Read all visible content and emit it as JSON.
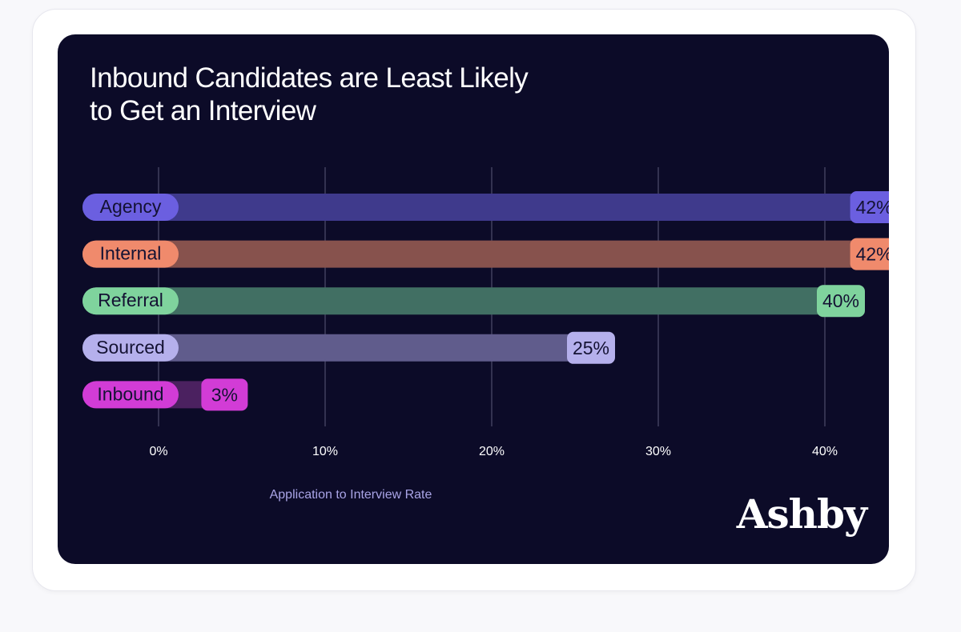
{
  "chart_data": {
    "type": "bar",
    "orientation": "horizontal",
    "title": "Inbound Candidates are Least Likely to Get an Interview",
    "title_lines": [
      "Inbound Candidates are Least Likely",
      "to Get an Interview"
    ],
    "xlabel": "Application to Interview Rate",
    "ylabel": "",
    "xlim": [
      0,
      40
    ],
    "ticks": [
      0,
      10,
      20,
      30,
      40
    ],
    "tick_labels": [
      "0%",
      "10%",
      "20%",
      "30%",
      "40%"
    ],
    "grid": true,
    "legend": "none",
    "categories": [
      "Agency",
      "Internal",
      "Referral",
      "Sourced",
      "Inbound"
    ],
    "values": [
      42,
      42,
      40,
      25,
      3
    ],
    "value_labels": [
      "42%",
      "42%",
      "40%",
      "25%",
      "3%"
    ],
    "colors": {
      "Agency": {
        "bar": "#3f3a8c",
        "label": "#6b5fe0",
        "text": "#141233"
      },
      "Internal": {
        "bar": "#87524d",
        "label": "#f08a6c",
        "text": "#141233"
      },
      "Referral": {
        "bar": "#416f63",
        "label": "#7fd39d",
        "text": "#141233"
      },
      "Sourced": {
        "bar": "#605c8c",
        "label": "#b5b0ec",
        "text": "#141233"
      },
      "Inbound": {
        "bar": "#4b2160",
        "label": "#d23cd6",
        "text": "#141233"
      }
    }
  },
  "brand": {
    "name": "Ashby"
  },
  "theme": {
    "background": "#0c0b28",
    "grid": "#5a5878",
    "tick_text": "#ffffff"
  }
}
